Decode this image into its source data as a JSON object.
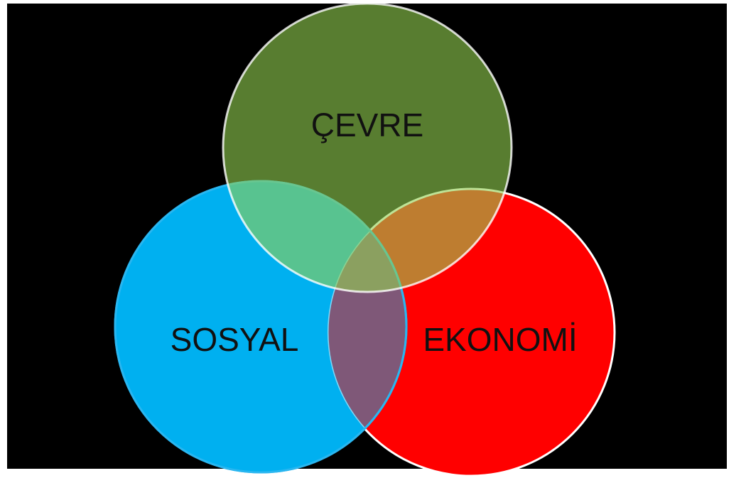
{
  "nodes": [
    {
      "label": "ÇEVRE"
    },
    {
      "label": "SOSYAL"
    },
    {
      "label": "EKONOMİ"
    }
  ]
}
